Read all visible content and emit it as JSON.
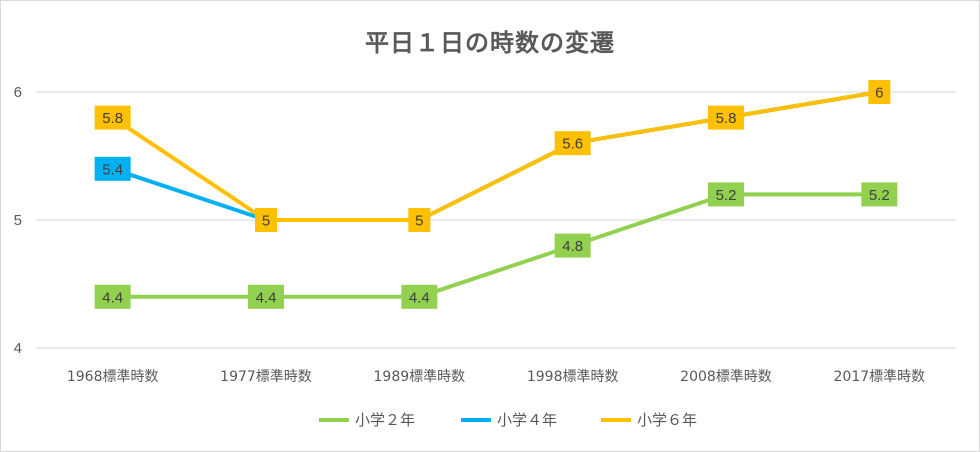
{
  "chart_data": {
    "type": "line",
    "title": "平日１日の時数の変遷",
    "xlabel": "",
    "ylabel": "",
    "categories": [
      "1968標準時数",
      "1977標準時数",
      "1989標準時数",
      "1998標準時数",
      "2008標準時数",
      "2017標準時数"
    ],
    "ylim": [
      4,
      6
    ],
    "yticks": [
      "4",
      "5",
      "6"
    ],
    "grid": true,
    "legend_position": "bottom",
    "data_labels": true,
    "series": [
      {
        "name": "小学２年",
        "color": "#92d050",
        "values": [
          4.4,
          4.4,
          4.4,
          4.8,
          5.2,
          5.2
        ],
        "labels": [
          "4.4",
          "4.4",
          "4.4",
          "4.8",
          "5.2",
          "5.2"
        ]
      },
      {
        "name": "小学４年",
        "color": "#00b0f0",
        "values": [
          5.4,
          5,
          5,
          5.6,
          5.8,
          6
        ],
        "labels": [
          "5.4",
          "",
          "",
          "",
          "",
          ""
        ]
      },
      {
        "name": "小学６年",
        "color": "#ffc000",
        "values": [
          5.8,
          5,
          5,
          5.6,
          5.8,
          6
        ],
        "labels": [
          "5.8",
          "5",
          "5",
          "5.6",
          "5.8",
          "6"
        ]
      }
    ]
  }
}
